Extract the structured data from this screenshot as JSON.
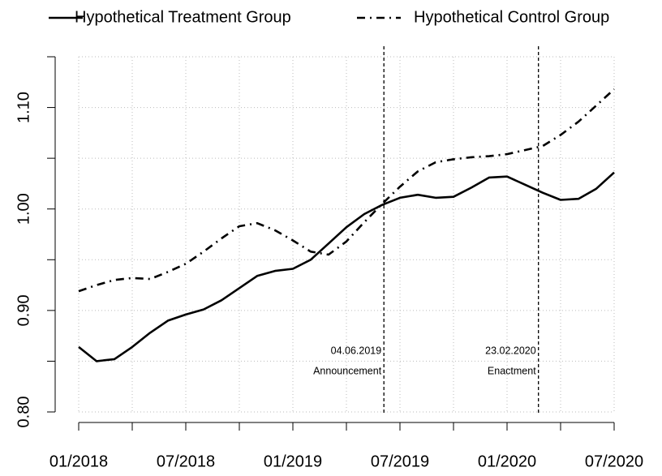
{
  "chart_data": {
    "type": "line",
    "x": [
      "2018-01",
      "2018-02",
      "2018-03",
      "2018-04",
      "2018-05",
      "2018-06",
      "2018-07",
      "2018-08",
      "2018-09",
      "2018-10",
      "2018-11",
      "2018-12",
      "2019-01",
      "2019-02",
      "2019-03",
      "2019-04",
      "2019-05",
      "2019-06",
      "2019-07",
      "2019-08",
      "2019-09",
      "2019-10",
      "2019-11",
      "2019-12",
      "2020-01",
      "2020-02",
      "2020-03",
      "2020-04",
      "2020-05",
      "2020-06",
      "2020-07"
    ],
    "series": [
      {
        "name": "Hypothetical Treatment Group",
        "color": "#000000",
        "dash": "solid",
        "values": [
          0.864,
          0.85,
          0.852,
          0.864,
          0.878,
          0.89,
          0.896,
          0.901,
          0.91,
          0.922,
          0.934,
          0.939,
          0.941,
          0.95,
          0.966,
          0.982,
          0.995,
          1.004,
          1.011,
          1.014,
          1.011,
          1.012,
          1.021,
          1.031,
          1.032,
          1.024,
          1.016,
          1.009,
          1.01,
          1.02,
          1.036
        ]
      },
      {
        "name": "Hypothetical Control Group",
        "color": "#000000",
        "dash": "dashdot",
        "values": [
          0.919,
          0.925,
          0.93,
          0.932,
          0.931,
          0.938,
          0.946,
          0.958,
          0.971,
          0.983,
          0.986,
          0.979,
          0.969,
          0.958,
          0.955,
          0.968,
          0.987,
          1.005,
          1.022,
          1.037,
          1.046,
          1.049,
          1.051,
          1.052,
          1.054,
          1.058,
          1.062,
          1.073,
          1.086,
          1.102,
          1.118
        ]
      }
    ],
    "xlim": [
      "2018-01",
      "2020-07"
    ],
    "xticks": [
      {
        "value": "2018-01",
        "label": "01/2018"
      },
      {
        "value": "2018-07",
        "label": "07/2018"
      },
      {
        "value": "2019-01",
        "label": "01/2019"
      },
      {
        "value": "2019-07",
        "label": "07/2019"
      },
      {
        "value": "2020-01",
        "label": "01/2020"
      },
      {
        "value": "2020-07",
        "label": "07/2020"
      }
    ],
    "minor_xticks": [
      "2018-04",
      "2018-10",
      "2019-04",
      "2019-10",
      "2020-04"
    ],
    "ylim": [
      0.8,
      1.15
    ],
    "yticks": [
      {
        "value": 0.8,
        "label": "0.80"
      },
      {
        "value": 0.9,
        "label": "0.90"
      },
      {
        "value": 1.0,
        "label": "1.00"
      },
      {
        "value": 1.1,
        "label": "1.10"
      }
    ],
    "minor_yticks": [
      0.85,
      0.95,
      1.05,
      1.15
    ],
    "grid": true,
    "legend": "top",
    "events": [
      {
        "date": "2019-06-04",
        "label": "04.06.2019",
        "text": "Announcement"
      },
      {
        "date": "2020-02-23",
        "label": "23.02.2020",
        "text": "Enactment"
      }
    ]
  }
}
